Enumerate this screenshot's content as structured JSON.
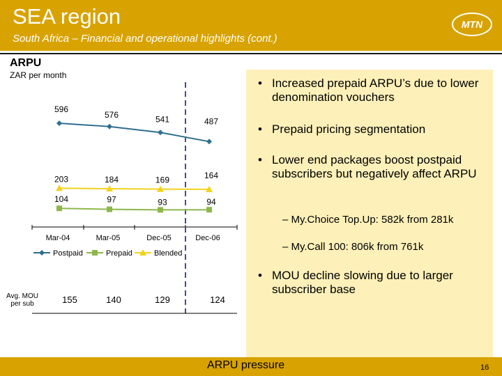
{
  "header": {
    "title": "SEA region",
    "subtitle": "South Africa – Financial and operational highlights (cont.)",
    "logo_text": "MTN",
    "color": "#d8a300"
  },
  "section": {
    "title": "ARPU",
    "subtitle": "ZAR per month"
  },
  "chart_data": {
    "type": "line",
    "categories": [
      "Mar-04",
      "Mar-05",
      "Dec-05",
      "Dec-06"
    ],
    "series": [
      {
        "name": "Postpaid",
        "values": [
          596,
          576,
          541,
          487
        ],
        "color": "#2f6f8f",
        "marker": "diamond"
      },
      {
        "name": "Prepaid",
        "values": [
          104,
          97,
          93,
          94
        ],
        "color": "#8cb84a",
        "marker": "square"
      },
      {
        "name": "Blended",
        "values": [
          203,
          184,
          169,
          164
        ],
        "color": "#f2d21f",
        "marker": "triangle"
      }
    ],
    "legend_position": "bottom",
    "mou": {
      "label": "Avg. MOU per sub",
      "values": [
        155,
        140,
        129,
        124
      ]
    }
  },
  "bullets": [
    {
      "text": "Increased prepaid ARPU’s due to lower denomination vouchers"
    },
    {
      "text": "Prepaid pricing segmentation"
    },
    {
      "text": "Lower end packages boost postpaid subscribers but negatively affect ARPU"
    },
    {
      "text": "MOU decline slowing due to larger subscriber base"
    }
  ],
  "sub_bullets": [
    {
      "text": "– My.Choice Top.Up: 582k from 281k"
    },
    {
      "text": "– My.Call 100: 806k from 761k"
    }
  ],
  "bullet_glyph": "•",
  "footer": {
    "text": "ARPU pressure",
    "page": "16"
  }
}
